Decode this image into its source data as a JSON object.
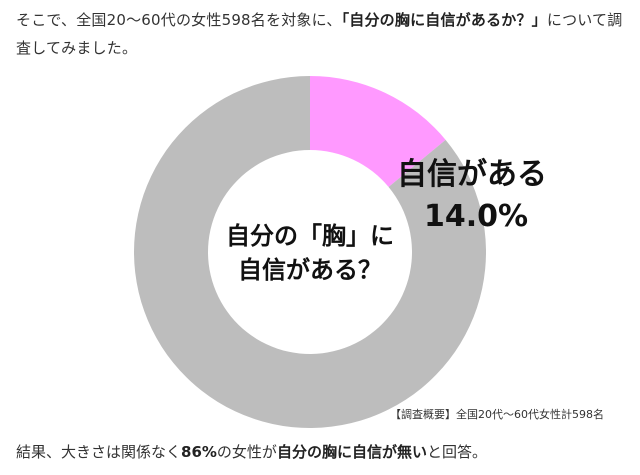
{
  "article": {
    "intro": {
      "before": "そこで、全国20～60代の女性598名を対象に、",
      "emphasis": "「自分の胸に自信があるか？」",
      "after": "について調査してみました。"
    },
    "outro": {
      "p1": "結果、大きさは関係なく",
      "b1": "86%",
      "p2": "の女性が",
      "b2": "自分の胸に自信が無い",
      "p3": "と回答。"
    }
  },
  "chart_data": {
    "type": "pie",
    "donut": true,
    "center_label": [
      "自分の「胸」に",
      "自信がある？"
    ],
    "slices": [
      {
        "label": "自信がある",
        "value": 14.0,
        "value_label": "14.0%",
        "color": "#ff99ff"
      },
      {
        "value": 86.0,
        "color": "#bdbdbd"
      }
    ],
    "note": "【調査概要】全国20代～60代女性計598名"
  }
}
